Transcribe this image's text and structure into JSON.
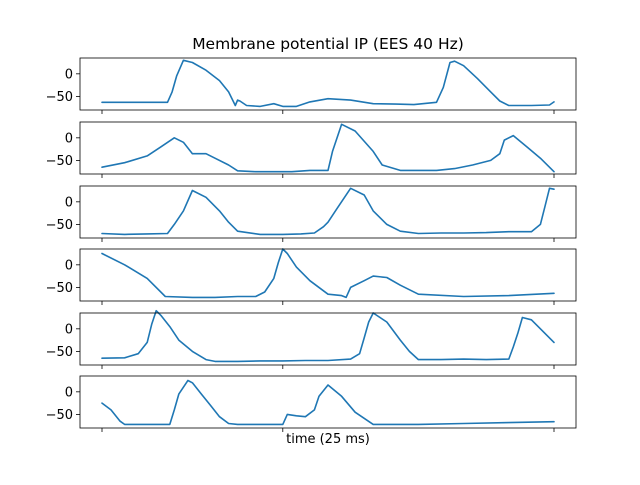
{
  "chart_data": {
    "type": "line",
    "title": "Membrane potential IP (EES 40 Hz)",
    "xlabel": "time (25 ms)",
    "ylim": [
      -80,
      35
    ],
    "yticks": [
      0,
      -50
    ],
    "line_color": "#1f77b4",
    "grid": false,
    "panels": [
      {
        "name": "",
        "x": [
          0,
          0.08,
          0.145,
          0.155,
          0.165,
          0.18,
          0.2,
          0.23,
          0.26,
          0.28,
          0.295,
          0.3,
          0.305,
          0.32,
          0.35,
          0.38,
          0.4,
          0.43,
          0.46,
          0.5,
          0.55,
          0.6,
          0.65,
          0.69,
          0.74,
          0.755,
          0.77,
          0.78,
          0.8,
          0.83,
          0.86,
          0.88,
          0.9,
          0.95,
          0.99,
          1.0
        ],
        "y": [
          -63,
          -63,
          -63,
          -40,
          -5,
          30,
          25,
          8,
          -15,
          -40,
          -70,
          -58,
          -60,
          -70,
          -72,
          -66,
          -72,
          -72,
          -62,
          -55,
          -58,
          -66,
          -67,
          -68,
          -63,
          -30,
          25,
          28,
          18,
          -10,
          -40,
          -60,
          -70,
          -70,
          -69,
          -62
        ]
      },
      {
        "name": "",
        "x": [
          0,
          0.05,
          0.1,
          0.13,
          0.16,
          0.18,
          0.2,
          0.23,
          0.25,
          0.28,
          0.3,
          0.34,
          0.38,
          0.42,
          0.46,
          0.48,
          0.5,
          0.51,
          0.53,
          0.56,
          0.6,
          0.62,
          0.66,
          0.7,
          0.74,
          0.78,
          0.82,
          0.86,
          0.88,
          0.89,
          0.91,
          0.94,
          0.97,
          1.0
        ],
        "y": [
          -65,
          -55,
          -40,
          -20,
          0,
          -10,
          -35,
          -35,
          -45,
          -60,
          -73,
          -75,
          -75,
          -75,
          -72,
          -72,
          -72,
          -30,
          30,
          15,
          -30,
          -60,
          -72,
          -72,
          -72,
          -68,
          -60,
          -50,
          -35,
          -5,
          5,
          -20,
          -45,
          -75
        ]
      },
      {
        "name": "",
        "x": [
          0,
          0.05,
          0.1,
          0.145,
          0.16,
          0.18,
          0.2,
          0.23,
          0.26,
          0.28,
          0.3,
          0.35,
          0.4,
          0.44,
          0.47,
          0.49,
          0.5,
          0.52,
          0.55,
          0.58,
          0.6,
          0.63,
          0.66,
          0.7,
          0.75,
          0.8,
          0.85,
          0.9,
          0.95,
          0.97,
          0.98,
          0.99,
          1.0
        ],
        "y": [
          -70,
          -72,
          -71,
          -70,
          -50,
          -20,
          25,
          10,
          -20,
          -45,
          -65,
          -72,
          -72,
          -71,
          -69,
          -55,
          -45,
          -15,
          30,
          15,
          -20,
          -50,
          -65,
          -70,
          -69,
          -69,
          -68,
          -66,
          -66,
          -50,
          -10,
          30,
          28
        ]
      },
      {
        "name": "",
        "x": [
          0,
          0.05,
          0.1,
          0.14,
          0.2,
          0.25,
          0.3,
          0.34,
          0.36,
          0.38,
          0.39,
          0.4,
          0.41,
          0.43,
          0.46,
          0.5,
          0.53,
          0.54,
          0.55,
          0.58,
          0.6,
          0.63,
          0.66,
          0.7,
          0.8,
          0.9,
          1.0
        ],
        "y": [
          25,
          0,
          -30,
          -70,
          -72,
          -72,
          -70,
          -70,
          -60,
          -30,
          5,
          35,
          25,
          -5,
          -35,
          -65,
          -68,
          -72,
          -50,
          -35,
          -25,
          -28,
          -45,
          -65,
          -70,
          -68,
          -63
        ]
      },
      {
        "name": "",
        "x": [
          0,
          0.05,
          0.08,
          0.1,
          0.11,
          0.12,
          0.13,
          0.15,
          0.17,
          0.2,
          0.23,
          0.25,
          0.3,
          0.35,
          0.4,
          0.45,
          0.5,
          0.55,
          0.57,
          0.58,
          0.59,
          0.6,
          0.63,
          0.66,
          0.68,
          0.7,
          0.75,
          0.8,
          0.85,
          0.9,
          0.91,
          0.92,
          0.93,
          0.95,
          0.97,
          1.0
        ],
        "y": [
          -65,
          -64,
          -55,
          -30,
          10,
          40,
          30,
          5,
          -25,
          -50,
          -68,
          -72,
          -72,
          -71,
          -71,
          -70,
          -70,
          -67,
          -55,
          -20,
          15,
          35,
          15,
          -25,
          -50,
          -68,
          -68,
          -67,
          -68,
          -67,
          -40,
          -10,
          25,
          20,
          0,
          -30
        ]
      },
      {
        "name": "",
        "x": [
          0,
          0.02,
          0.04,
          0.05,
          0.08,
          0.1,
          0.15,
          0.16,
          0.17,
          0.19,
          0.2,
          0.22,
          0.24,
          0.26,
          0.28,
          0.3,
          0.4,
          0.41,
          0.43,
          0.45,
          0.47,
          0.48,
          0.5,
          0.53,
          0.56,
          0.6,
          0.7,
          0.8,
          0.9,
          1.0
        ],
        "y": [
          -25,
          -40,
          -65,
          -72,
          -72,
          -72,
          -72,
          -40,
          -5,
          25,
          20,
          -5,
          -30,
          -55,
          -70,
          -72,
          -72,
          -50,
          -53,
          -55,
          -40,
          -10,
          15,
          -10,
          -45,
          -72,
          -72,
          -70,
          -68,
          -66
        ]
      }
    ]
  }
}
